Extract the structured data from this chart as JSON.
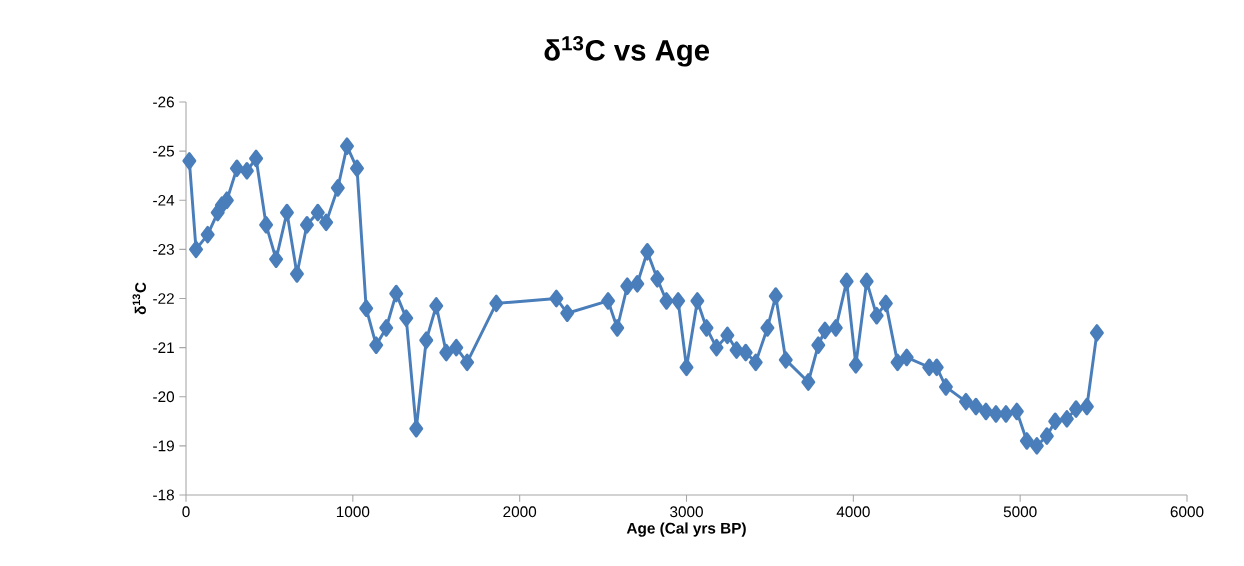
{
  "chart_data": {
    "type": "line",
    "title": "δ$^{13}$C vs Age",
    "xlabel": "Age (Cal yrs BP)",
    "ylabel": "δ$^{13}$C",
    "x": [
      20,
      60,
      130,
      190,
      215,
      245,
      305,
      365,
      420,
      480,
      540,
      605,
      665,
      725,
      790,
      840,
      910,
      965,
      1025,
      1080,
      1140,
      1200,
      1260,
      1320,
      1380,
      1440,
      1500,
      1560,
      1620,
      1685,
      1860,
      2220,
      2285,
      2530,
      2585,
      2645,
      2705,
      2765,
      2825,
      2880,
      2950,
      3000,
      3065,
      3120,
      3180,
      3245,
      3300,
      3355,
      3415,
      3485,
      3535,
      3595,
      3730,
      3790,
      3830,
      3895,
      3960,
      4015,
      4080,
      4140,
      4195,
      4265,
      4320,
      4455,
      4500,
      4555,
      4675,
      4735,
      4795,
      4855,
      4915,
      4980,
      5040,
      5100,
      5160,
      5210,
      5280,
      5335,
      5400,
      5460
    ],
    "series": [
      {
        "color": "#4a7ebb",
        "values": [
          -24.8,
          -23.0,
          -23.3,
          -23.75,
          -23.9,
          -24.0,
          -24.65,
          -24.6,
          -24.85,
          -23.5,
          -22.8,
          -23.75,
          -22.5,
          -23.5,
          -23.75,
          -23.55,
          -24.25,
          -25.1,
          -24.65,
          -21.8,
          -21.05,
          -21.4,
          -22.1,
          -21.6,
          -19.35,
          -21.15,
          -21.85,
          -20.9,
          -21.0,
          -20.7,
          -21.9,
          -22.0,
          -21.7,
          -21.95,
          -21.4,
          -22.25,
          -22.3,
          -22.95,
          -22.4,
          -21.95,
          -21.95,
          -20.6,
          -21.95,
          -21.4,
          -21.0,
          -21.25,
          -20.95,
          -20.9,
          -20.7,
          -21.4,
          -22.05,
          -20.75,
          -20.3,
          -21.05,
          -21.35,
          -21.4,
          -22.35,
          -20.65,
          -22.35,
          -21.65,
          -21.9,
          -20.7,
          -20.8,
          -20.6,
          -20.6,
          -20.2,
          -19.9,
          -19.8,
          -19.7,
          -19.65,
          -19.65,
          -19.7,
          -19.1,
          -19.0,
          -19.2,
          -19.5,
          -19.55,
          -19.75,
          -19.8,
          -21.3
        ]
      }
    ],
    "xlim": [
      0,
      6000
    ],
    "xticks": [
      0,
      1000,
      2000,
      3000,
      4000,
      5000,
      6000
    ],
    "ylim": [
      -18,
      -26
    ],
    "yticks": [
      -26,
      -25,
      -24,
      -23,
      -22,
      -21,
      -20,
      -19,
      -18
    ],
    "marker": "diamond",
    "line_style": "solid"
  }
}
